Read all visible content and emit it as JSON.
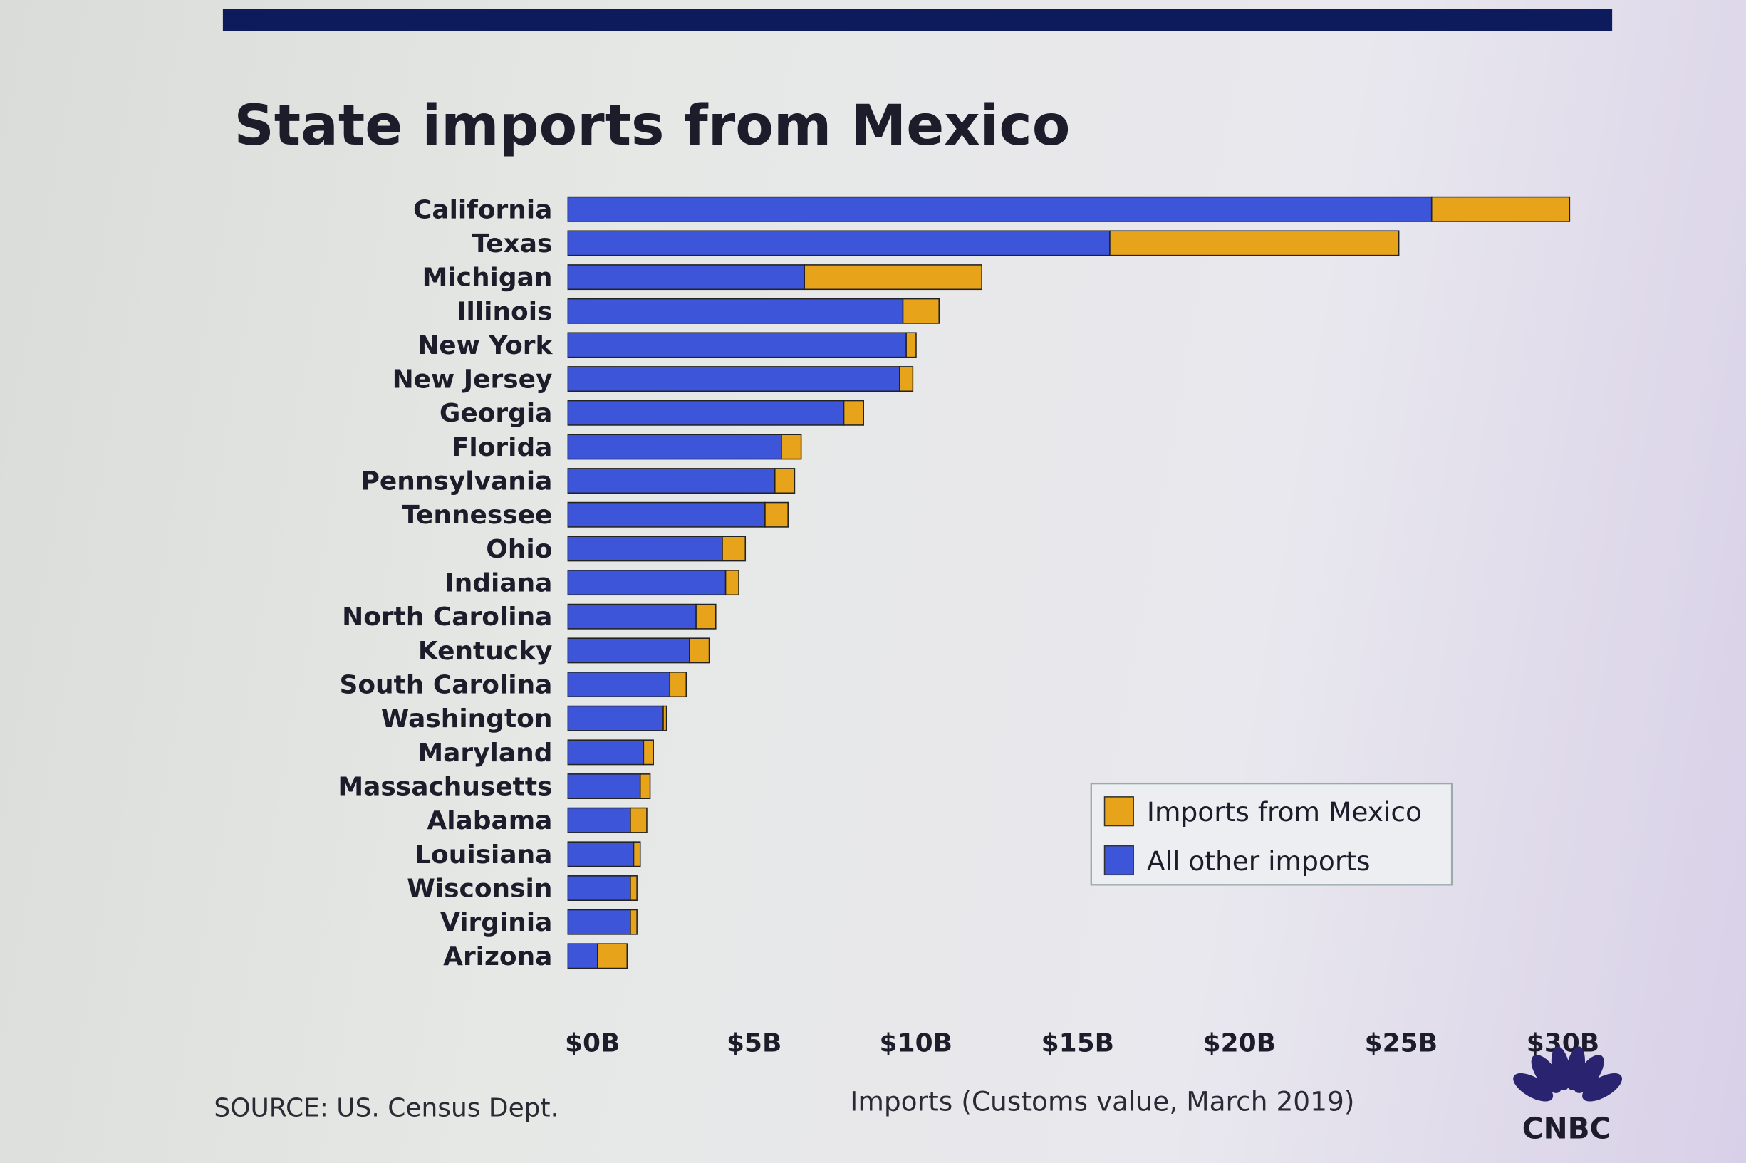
{
  "chart_data": {
    "type": "bar",
    "orientation": "horizontal",
    "stacked": true,
    "title": "State imports from Mexico",
    "xlabel": "Imports (Customs value, March 2019)",
    "source": "SOURCE: US. Census Dept.",
    "brand": "CNBC",
    "xlim": [
      0,
      30
    ],
    "x_ticks": [
      "$0B",
      "$5B",
      "$10B",
      "$15B",
      "$20B",
      "$25B",
      "$30B"
    ],
    "legend_position": "bottom-right",
    "categories": [
      "California",
      "Texas",
      "Michigan",
      "Illinois",
      "New York",
      "New Jersey",
      "Georgia",
      "Florida",
      "Pennsylvania",
      "Tennessee",
      "Ohio",
      "Indiana",
      "North Carolina",
      "Kentucky",
      "South Carolina",
      "Washington",
      "Maryland",
      "Massachusetts",
      "Alabama",
      "Louisiana",
      "Wisconsin",
      "Virginia",
      "Arizona"
    ],
    "series": [
      {
        "name": "All other imports",
        "color": "#3d55d8",
        "values": [
          26.3,
          16.5,
          7.2,
          10.2,
          10.3,
          10.1,
          8.4,
          6.5,
          6.3,
          6.0,
          4.7,
          4.8,
          3.9,
          3.7,
          3.1,
          2.9,
          2.3,
          2.2,
          1.9,
          2.0,
          1.9,
          1.9,
          0.9
        ]
      },
      {
        "name": "Imports from Mexico",
        "color": "#e7a41b",
        "values": [
          4.2,
          8.8,
          5.4,
          1.1,
          0.3,
          0.4,
          0.6,
          0.6,
          0.6,
          0.7,
          0.7,
          0.4,
          0.6,
          0.6,
          0.5,
          0.1,
          0.3,
          0.3,
          0.5,
          0.2,
          0.2,
          0.2,
          0.9
        ]
      }
    ],
    "units": "billions USD"
  },
  "colors": {
    "header_bar": "#0d1a5c",
    "text": "#1c1c2a"
  }
}
